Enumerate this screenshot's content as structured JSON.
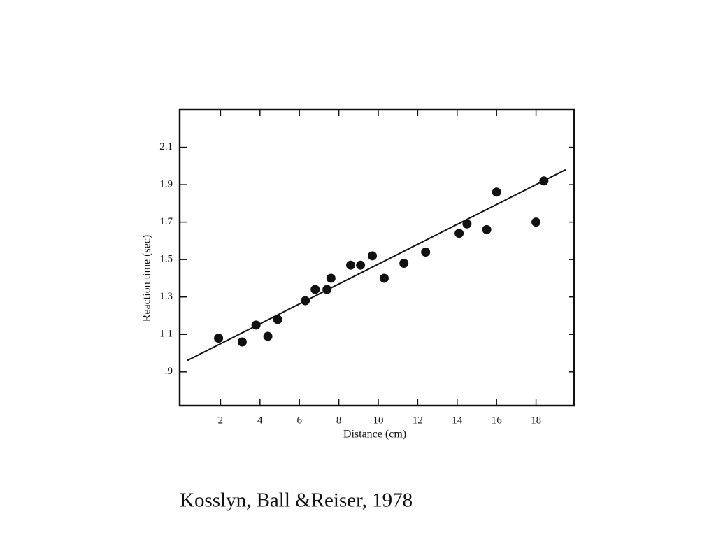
{
  "chart_data": {
    "type": "scatter",
    "x_label": "Distance (cm)",
    "y_label": "Reaction time (sec)",
    "caption": "Kosslyn, Ball &Reiser, 1978",
    "x": [
      1.9,
      3.1,
      3.8,
      4.4,
      4.9,
      6.3,
      6.8,
      7.4,
      7.6,
      8.6,
      9.1,
      9.7,
      10.3,
      11.3,
      12.4,
      14.1,
      14.5,
      15.5,
      16.0,
      18.0,
      18.4
    ],
    "y": [
      1.08,
      1.06,
      1.15,
      1.09,
      1.18,
      1.28,
      1.34,
      1.34,
      1.4,
      1.47,
      1.47,
      1.52,
      1.4,
      1.48,
      1.54,
      1.64,
      1.69,
      1.66,
      1.86,
      1.7,
      1.92
    ],
    "color": "#111111",
    "trend_line": {
      "x": [
        0.3,
        19.5
      ],
      "y": [
        0.96,
        1.98
      ]
    },
    "xlim": [
      0,
      20
    ],
    "ylim": [
      0.72,
      2.3
    ],
    "xticks": [
      2,
      4,
      6,
      8,
      10,
      12,
      14,
      16,
      18
    ],
    "yticks": [
      {
        "value": 0.9,
        "label": ".9"
      },
      1.1,
      1.3,
      1.5,
      1.7,
      1.9,
      2.1
    ]
  }
}
